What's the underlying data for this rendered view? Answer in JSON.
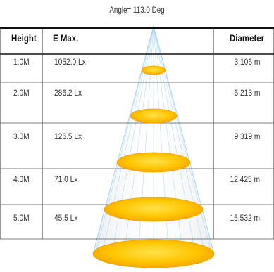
{
  "angle_label": "Angle= 113.0 Deg",
  "headers": {
    "height": "Height",
    "emax": "E Max.",
    "diameter": "Diameter"
  },
  "rows": [
    {
      "height": "1.0M",
      "emax": "1052.0 Lx",
      "diameter": "3.106 m"
    },
    {
      "height": "2.0M",
      "emax": "286.2 Lx",
      "diameter": "6.213 m"
    },
    {
      "height": "3.0M",
      "emax": "126.5 Lx",
      "diameter": "9.319 m"
    },
    {
      "height": "4.0M",
      "emax": "71.0 Lx",
      "diameter": "12.425 m"
    },
    {
      "height": "5.0M",
      "emax": "45.5 Lx",
      "diameter": "15.532 m"
    }
  ],
  "colors": {
    "spot_fill": "#ffc800",
    "spot_edge": "#f2a400",
    "cone_line": "#9fd0ee",
    "grid": "#111111"
  }
}
